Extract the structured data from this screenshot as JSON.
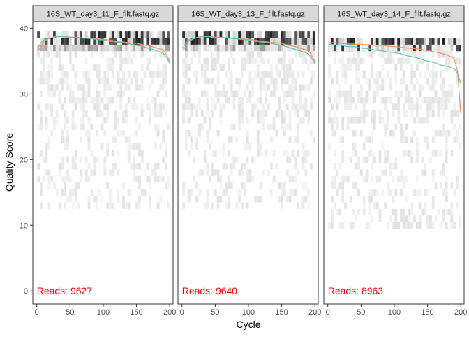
{
  "chart_data": {
    "type": "heatmap",
    "description_kind": "quality-profile",
    "xlabel": "Cycle",
    "ylabel": "Quality Score",
    "xlim": [
      -6,
      205
    ],
    "ylim": [
      -2,
      41
    ],
    "x_ticks": [
      0,
      50,
      100,
      150,
      200
    ],
    "y_ticks": [
      0,
      10,
      20,
      30,
      40
    ],
    "colors": {
      "mean_line": "#66c2a5",
      "quartile_line": "#fc8d62",
      "reads_text": "#ff0000",
      "strip_fill": "#d9d9d9",
      "panel_border": "#333333",
      "heat_dark": "#000000",
      "heat_light": "#f2f2f2"
    },
    "panels": [
      {
        "title": "16S_WT_day3_11_F_filt.fastq.gz",
        "reads_label": "Reads:",
        "reads_value": "9627",
        "mean": [
          [
            1,
            36.8
          ],
          [
            5,
            37.6
          ],
          [
            10,
            38.2
          ],
          [
            20,
            38.5
          ],
          [
            30,
            38.7
          ],
          [
            40,
            38.7
          ],
          [
            50,
            38.6
          ],
          [
            60,
            38.5
          ],
          [
            70,
            38.5
          ],
          [
            80,
            38.4
          ],
          [
            90,
            38.3
          ],
          [
            100,
            38.2
          ],
          [
            110,
            38.0
          ],
          [
            120,
            37.9
          ],
          [
            130,
            37.8
          ],
          [
            140,
            37.6
          ],
          [
            150,
            37.4
          ],
          [
            160,
            37.2
          ],
          [
            170,
            36.9
          ],
          [
            180,
            36.6
          ],
          [
            190,
            36.2
          ],
          [
            195,
            35.6
          ],
          [
            200,
            34.7
          ]
        ],
        "q25": [
          [
            1,
            36.5
          ],
          [
            5,
            37.0
          ],
          [
            10,
            38.0
          ],
          [
            20,
            38.5
          ],
          [
            30,
            38.8
          ],
          [
            40,
            38.8
          ],
          [
            50,
            38.6
          ],
          [
            60,
            38.6
          ],
          [
            70,
            38.5
          ],
          [
            80,
            38.5
          ],
          [
            90,
            38.4
          ],
          [
            100,
            38.3
          ],
          [
            110,
            38.2
          ],
          [
            120,
            38.0
          ],
          [
            130,
            37.9
          ],
          [
            140,
            37.8
          ],
          [
            150,
            37.7
          ],
          [
            160,
            37.5
          ],
          [
            170,
            37.3
          ],
          [
            180,
            37.0
          ],
          [
            190,
            36.7
          ],
          [
            195,
            36.0
          ],
          [
            200,
            35.0
          ]
        ],
        "heat_top_rows": [
          [
            37,
            39
          ],
          [
            26,
            37
          ],
          [
            13,
            25
          ]
        ],
        "heat_cycles_extent": [
          1,
          200
        ]
      },
      {
        "title": "16S_WT_day3_13_F_filt.fastq.gz",
        "reads_label": "Reads:",
        "reads_value": "9640",
        "mean": [
          [
            1,
            36.9
          ],
          [
            5,
            37.6
          ],
          [
            10,
            38.2
          ],
          [
            20,
            38.5
          ],
          [
            30,
            38.7
          ],
          [
            40,
            38.7
          ],
          [
            50,
            38.6
          ],
          [
            60,
            38.5
          ],
          [
            70,
            38.5
          ],
          [
            80,
            38.4
          ],
          [
            90,
            38.3
          ],
          [
            100,
            38.2
          ],
          [
            110,
            38.0
          ],
          [
            120,
            37.9
          ],
          [
            130,
            37.8
          ],
          [
            140,
            37.6
          ],
          [
            150,
            37.4
          ],
          [
            160,
            37.1
          ],
          [
            170,
            36.8
          ],
          [
            180,
            36.5
          ],
          [
            190,
            36.1
          ],
          [
            195,
            35.5
          ],
          [
            200,
            34.6
          ]
        ],
        "q25": [
          [
            1,
            36.6
          ],
          [
            5,
            37.1
          ],
          [
            10,
            38.0
          ],
          [
            20,
            38.5
          ],
          [
            30,
            38.8
          ],
          [
            40,
            38.8
          ],
          [
            50,
            38.6
          ],
          [
            60,
            38.6
          ],
          [
            70,
            38.5
          ],
          [
            80,
            38.5
          ],
          [
            90,
            38.4
          ],
          [
            100,
            38.3
          ],
          [
            110,
            38.2
          ],
          [
            120,
            38.0
          ],
          [
            130,
            37.9
          ],
          [
            140,
            37.8
          ],
          [
            150,
            37.7
          ],
          [
            160,
            37.4
          ],
          [
            170,
            37.2
          ],
          [
            180,
            36.9
          ],
          [
            190,
            36.6
          ],
          [
            195,
            35.9
          ],
          [
            200,
            34.9
          ]
        ],
        "heat_top_rows": [
          [
            37,
            39
          ],
          [
            26,
            37
          ],
          [
            13,
            25
          ]
        ],
        "heat_cycles_extent": [
          1,
          200
        ]
      },
      {
        "title": "16S_WT_day3_14_F_filt.fastq.gz",
        "reads_label": "Reads:",
        "reads_value": "8963",
        "mean": [
          [
            1,
            37.6
          ],
          [
            10,
            37.5
          ],
          [
            20,
            37.4
          ],
          [
            30,
            37.2
          ],
          [
            40,
            37.2
          ],
          [
            50,
            37.0
          ],
          [
            60,
            36.9
          ],
          [
            70,
            36.7
          ],
          [
            80,
            36.6
          ],
          [
            90,
            36.4
          ],
          [
            100,
            36.3
          ],
          [
            110,
            36.1
          ],
          [
            120,
            35.8
          ],
          [
            130,
            35.6
          ],
          [
            140,
            35.3
          ],
          [
            150,
            35.0
          ],
          [
            160,
            34.8
          ],
          [
            170,
            34.4
          ],
          [
            180,
            34.2
          ],
          [
            190,
            33.8
          ],
          [
            195,
            33.2
          ],
          [
            200,
            31.6
          ]
        ],
        "q25": [
          [
            1,
            37.8
          ],
          [
            10,
            37.8
          ],
          [
            20,
            37.7
          ],
          [
            30,
            37.6
          ],
          [
            40,
            37.6
          ],
          [
            50,
            37.5
          ],
          [
            60,
            37.5
          ],
          [
            70,
            37.4
          ],
          [
            80,
            37.4
          ],
          [
            90,
            37.3
          ],
          [
            100,
            37.2
          ],
          [
            110,
            37.1
          ],
          [
            120,
            37.0
          ],
          [
            130,
            36.9
          ],
          [
            140,
            36.8
          ],
          [
            150,
            36.6
          ],
          [
            160,
            36.4
          ],
          [
            170,
            36.2
          ],
          [
            180,
            35.9
          ],
          [
            190,
            35.4
          ],
          [
            195,
            33.5
          ],
          [
            200,
            27.0
          ]
        ],
        "heat_top_rows": [
          [
            37,
            38
          ],
          [
            25,
            37
          ],
          [
            10,
            24
          ]
        ],
        "heat_cycles_extent": [
          1,
          200
        ]
      }
    ]
  }
}
